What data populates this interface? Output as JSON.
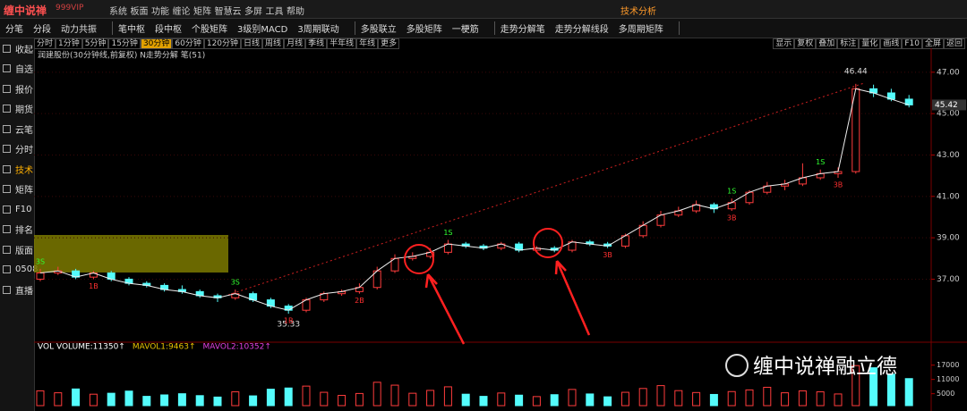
{
  "menu": {
    "logo": "缠中说禅",
    "edition": "999VIP",
    "items": [
      "系统",
      "板面",
      "功能",
      "缠论",
      "矩阵",
      "智慧云",
      "多屏",
      "工具",
      "帮助"
    ],
    "center": "技术分析"
  },
  "toolbar": [
    [
      "分笔",
      "分段",
      "动力共振"
    ],
    [
      "笔中枢",
      "段中枢",
      "个股矩阵",
      "3级别MACD",
      "3周期联动"
    ],
    [
      "多股联立",
      "多股矩阵",
      "一梗筋"
    ],
    [
      "走势分解笔",
      "走势分解线段",
      "多周期矩阵"
    ]
  ],
  "sidebar": [
    "收起",
    "自选",
    "报价",
    "期货",
    "云笔",
    "分时",
    "技术",
    "矩阵",
    "F10",
    "排名",
    "版面",
    "0508",
    "直播"
  ],
  "periods": [
    "分时",
    "1分钟",
    "5分钟",
    "15分钟",
    "30分钟",
    "60分钟",
    "120分钟",
    "日线",
    "周线",
    "月线",
    "季线",
    "半年线",
    "年线",
    "更多"
  ],
  "tools": [
    "显示",
    "复权",
    "叠加",
    "标注",
    "量化",
    "画线",
    "F10",
    "全屏",
    "返回"
  ],
  "chart_title": "润建股份(30分钟线,前复权) N走势分解 笔(51)",
  "watermark": "缠中说禅融立德",
  "chart_data": {
    "type": "candlestick",
    "ylim": [
      34.3,
      47.9
    ],
    "yticks": [
      {
        "value": 37,
        "label": "37.00"
      },
      {
        "value": 39,
        "label": "39.00"
      },
      {
        "value": 41,
        "label": "41.00"
      },
      {
        "value": 43,
        "label": "43.00"
      },
      {
        "value": 45,
        "label": "45.00"
      },
      {
        "value": 47,
        "label": "47.00"
      }
    ],
    "up_color": "#ff3c3c",
    "down_color": "#54fcfc",
    "ohlc": [
      [
        37.0,
        37.5,
        36.9,
        37.3
      ],
      [
        37.3,
        37.6,
        37.2,
        37.4
      ],
      [
        37.4,
        37.5,
        37.0,
        37.1
      ],
      [
        37.1,
        37.4,
        37.0,
        37.3
      ],
      [
        37.3,
        37.4,
        36.9,
        37.0
      ],
      [
        37.0,
        37.1,
        36.7,
        36.8
      ],
      [
        36.8,
        36.9,
        36.6,
        36.7
      ],
      [
        36.7,
        36.8,
        36.4,
        36.5
      ],
      [
        36.5,
        36.7,
        36.3,
        36.4
      ],
      [
        36.4,
        36.5,
        36.1,
        36.2
      ],
      [
        36.2,
        36.3,
        35.9,
        36.1
      ],
      [
        36.1,
        36.5,
        36.0,
        36.3
      ],
      [
        36.3,
        36.4,
        35.9,
        36.0
      ],
      [
        36.0,
        36.1,
        35.6,
        35.7
      ],
      [
        35.7,
        35.8,
        35.33,
        35.5
      ],
      [
        35.5,
        36.1,
        35.4,
        36.0
      ],
      [
        36.0,
        36.4,
        35.9,
        36.3
      ],
      [
        36.3,
        36.5,
        36.2,
        36.4
      ],
      [
        36.4,
        36.8,
        36.3,
        36.6
      ],
      [
        36.6,
        37.6,
        36.5,
        37.4
      ],
      [
        37.4,
        38.2,
        37.3,
        38.0
      ],
      [
        38.0,
        38.3,
        37.9,
        38.1
      ],
      [
        38.1,
        38.5,
        38.0,
        38.3
      ],
      [
        38.3,
        38.9,
        38.2,
        38.7
      ],
      [
        38.7,
        38.8,
        38.5,
        38.6
      ],
      [
        38.6,
        38.7,
        38.4,
        38.5
      ],
      [
        38.5,
        38.8,
        38.4,
        38.7
      ],
      [
        38.7,
        38.8,
        38.3,
        38.4
      ],
      [
        38.4,
        38.6,
        38.3,
        38.5
      ],
      [
        38.5,
        38.6,
        38.3,
        38.4
      ],
      [
        38.4,
        38.9,
        38.3,
        38.8
      ],
      [
        38.8,
        38.9,
        38.6,
        38.7
      ],
      [
        38.7,
        38.8,
        38.5,
        38.6
      ],
      [
        38.6,
        39.2,
        38.5,
        39.1
      ],
      [
        39.1,
        39.8,
        39.0,
        39.6
      ],
      [
        39.6,
        40.3,
        39.5,
        40.1
      ],
      [
        40.1,
        40.5,
        40.0,
        40.3
      ],
      [
        40.3,
        40.8,
        40.2,
        40.6
      ],
      [
        40.6,
        40.7,
        40.2,
        40.4
      ],
      [
        40.4,
        40.9,
        40.3,
        40.7
      ],
      [
        40.7,
        41.3,
        40.6,
        41.2
      ],
      [
        41.2,
        41.7,
        41.1,
        41.5
      ],
      [
        41.5,
        41.8,
        41.3,
        41.6
      ],
      [
        41.6,
        42.6,
        41.5,
        41.9
      ],
      [
        41.9,
        42.3,
        41.8,
        42.1
      ],
      [
        42.1,
        42.4,
        41.9,
        42.2
      ],
      [
        42.2,
        46.44,
        42.1,
        46.2
      ],
      [
        46.2,
        46.4,
        45.8,
        46.0
      ],
      [
        46.0,
        46.2,
        45.6,
        45.7
      ],
      [
        45.7,
        45.9,
        45.3,
        45.42
      ]
    ],
    "signals": [
      {
        "label": "3S",
        "candle": 0
      },
      {
        "label": "1B",
        "candle": 3
      },
      {
        "label": "3S",
        "candle": 11
      },
      {
        "label": "1B",
        "candle": 14
      },
      {
        "label": "2B",
        "candle": 18
      },
      {
        "label": "1S",
        "candle": 23
      },
      {
        "label": "3B",
        "candle": 32
      },
      {
        "label": "1S",
        "candle": 39
      },
      {
        "label": "3B",
        "candle": 39
      },
      {
        "label": "1S",
        "candle": 44
      },
      {
        "label": "3B",
        "candle": 45
      }
    ],
    "volume": {
      "legend": [
        {
          "text": "VOL VOLUME:11350↑",
          "color": "#ffffff"
        },
        {
          "text": "MAVOL1:9463↑",
          "color": "#e8c200"
        },
        {
          "text": "MAVOL2:10352↑",
          "color": "#e040e0"
        }
      ],
      "ylim": [
        0,
        23250
      ],
      "yticks": [
        5000,
        11000,
        17000
      ],
      "values": [
        6200,
        5400,
        7000,
        4800,
        5200,
        6100,
        3900,
        4500,
        5000,
        4200,
        3600,
        5800,
        4100,
        6900,
        7400,
        8200,
        5600,
        4300,
        5100,
        9800,
        8600,
        5200,
        6400,
        7900,
        4800,
        3900,
        5300,
        4400,
        3800,
        4600,
        6800,
        4900,
        3700,
        5600,
        7200,
        8400,
        6300,
        5500,
        4700,
        5900,
        6600,
        7700,
        5400,
        6200,
        5800,
        4900,
        16800,
        15900,
        13200,
        11350
      ]
    }
  }
}
